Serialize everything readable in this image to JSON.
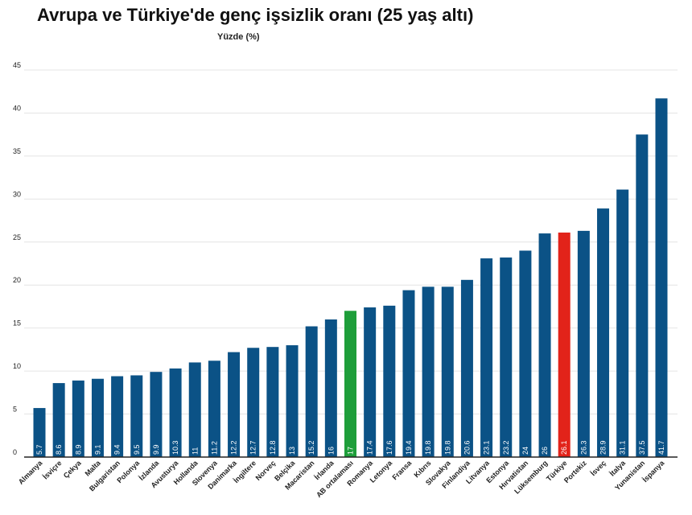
{
  "chart_data": {
    "type": "bar",
    "title": "Avrupa ve Türkiye'de genç işsizlik oranı (25 yaş altı)",
    "ylabel": "Yüzde (%)",
    "xlabel": "",
    "ylim": [
      0,
      45
    ],
    "yticks": [
      0,
      5,
      10,
      15,
      20,
      25,
      30,
      35,
      40,
      45
    ],
    "grid": true,
    "categories": [
      "Almanya",
      "İsviçre",
      "Çekya",
      "Malta",
      "Bulgaristan",
      "Polonya",
      "İzlanda",
      "Avusturya",
      "Hollanda",
      "Slovenya",
      "Danimarka",
      "İngiltere",
      "Norveç",
      "Belçika",
      "Macaristan",
      "İrlanda",
      "AB ortalaması",
      "Romanya",
      "Letonya",
      "Fransa",
      "Kıbrıs",
      "Slovakya",
      "Finlandiya",
      "Litvanya",
      "Estonya",
      "Hırvatistan",
      "Lüksemburg",
      "Türkiye",
      "Portekiz",
      "İsveç",
      "İtalya",
      "Yunanistan",
      "İspanya"
    ],
    "values": [
      5.7,
      8.6,
      8.9,
      9.1,
      9.4,
      9.5,
      9.9,
      10.3,
      11,
      11.2,
      12.2,
      12.7,
      12.8,
      13,
      15.2,
      16,
      17,
      17.4,
      17.6,
      19.4,
      19.8,
      19.8,
      20.6,
      23.1,
      23.2,
      24,
      26,
      26.1,
      26.3,
      28.9,
      31.1,
      37.5,
      41.7
    ],
    "colors": {
      "default": "#0b5286",
      "highlights": {
        "AB ortalaması": "#1e9e3a",
        "Türkiye": "#e2231a"
      }
    }
  }
}
